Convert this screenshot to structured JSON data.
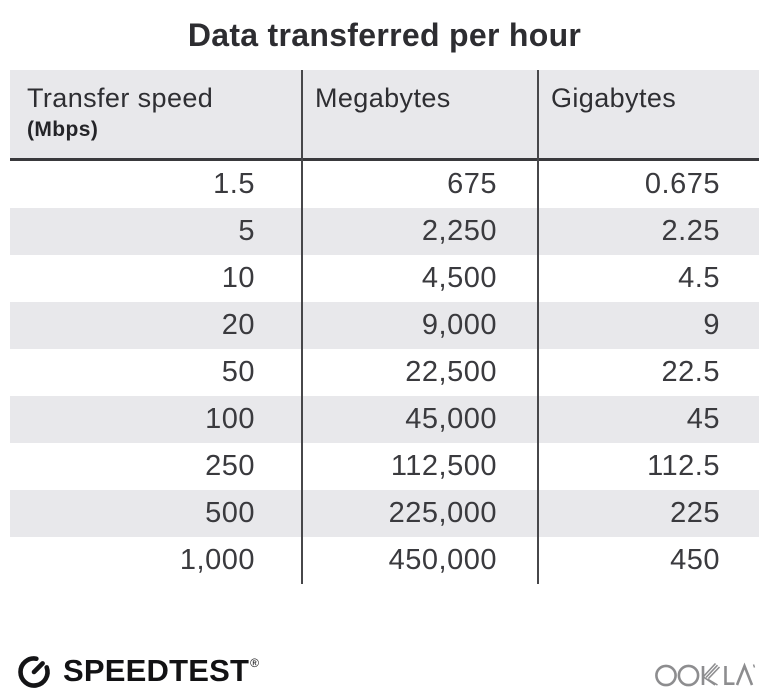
{
  "title": "Data transferred per hour",
  "chart_data": {
    "type": "table",
    "title": "Data transferred per hour",
    "columns": [
      "Transfer speed (Mbps)",
      "Megabytes",
      "Gigabytes"
    ],
    "rows": [
      [
        1.5,
        675,
        0.675
      ],
      [
        5,
        2250,
        2.25
      ],
      [
        10,
        4500,
        4.5
      ],
      [
        20,
        9000,
        9
      ],
      [
        50,
        22500,
        22.5
      ],
      [
        100,
        45000,
        45
      ],
      [
        250,
        112500,
        112.5
      ],
      [
        500,
        225000,
        225
      ],
      [
        1000,
        450000,
        450
      ]
    ],
    "layout": {
      "striped_rows": true,
      "column_dividers": true,
      "header_background": true
    }
  },
  "table": {
    "columns": [
      {
        "label": "Transfer speed",
        "sublabel": "(Mbps)"
      },
      {
        "label": "Megabytes",
        "sublabel": ""
      },
      {
        "label": "Gigabytes",
        "sublabel": ""
      }
    ],
    "rows": [
      [
        "1.5",
        "675",
        "0.675"
      ],
      [
        "5",
        "2,250",
        "2.25"
      ],
      [
        "10",
        "4,500",
        "4.5"
      ],
      [
        "20",
        "9,000",
        "9"
      ],
      [
        "50",
        "22,500",
        "22.5"
      ],
      [
        "100",
        "45,000",
        "45"
      ],
      [
        "250",
        "112,500",
        "112.5"
      ],
      [
        "500",
        "225,000",
        "225"
      ],
      [
        "1,000",
        "450,000",
        "450"
      ]
    ]
  },
  "footer": {
    "speedtest_label": "SPEEDTEST",
    "speedtest_trademark": "®",
    "ookla_label": "OOKLA",
    "icons": {
      "gauge": "speedtest-gauge-icon",
      "ookla": "ookla-wordmark"
    }
  },
  "colors": {
    "header_bg": "#e8e8eb",
    "stripe_bg": "#e8e8eb",
    "header_rule": "#39393c",
    "column_divider": "#47474a",
    "title_text": "#2d2d31",
    "number_text": "#3a3a3e",
    "speedtest_black": "#121214",
    "ookla_gray": "#8d8d8f"
  }
}
